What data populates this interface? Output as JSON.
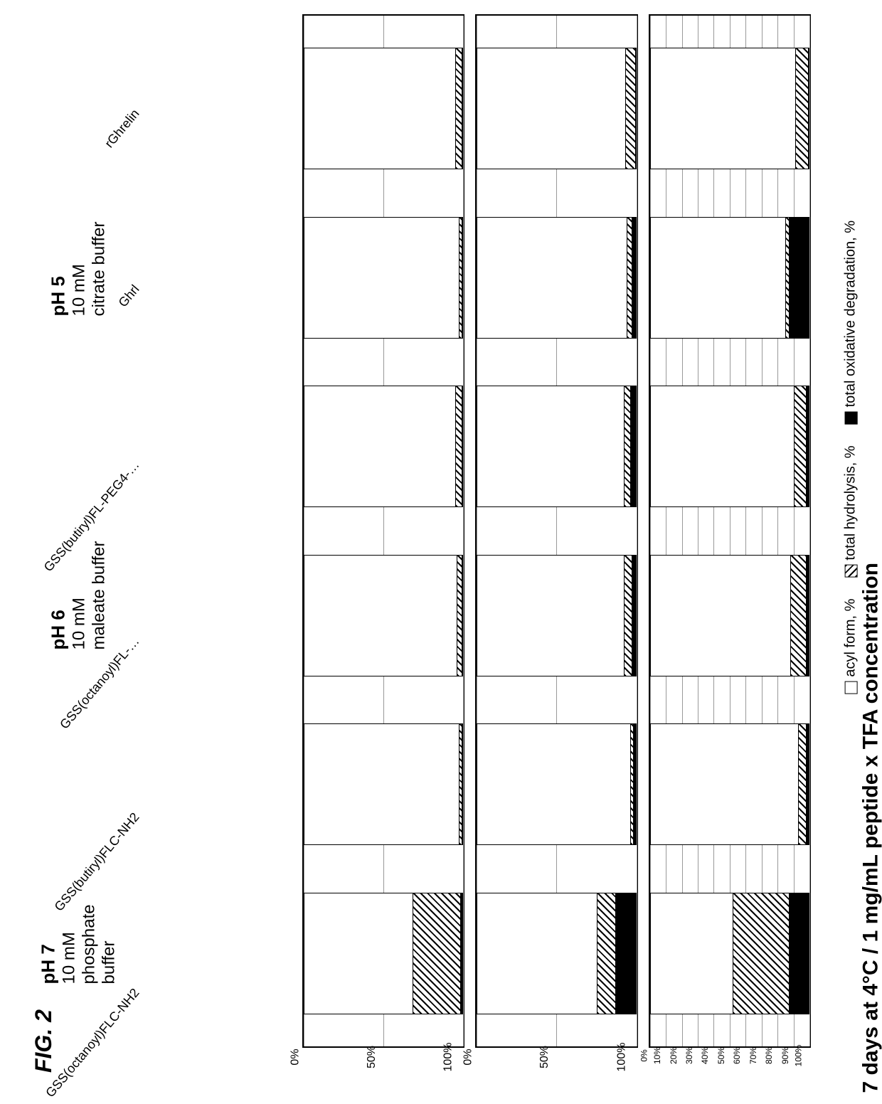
{
  "figure_label": "FIG. 2",
  "title": "7 days at 4°C / 1 mg/mL peptide x TFA concentration",
  "legend": {
    "acyl": "acyl form, %",
    "hydrolysis": "total hydrolysis, %",
    "oxidative": "total oxidative degradation, %"
  },
  "categories": [
    "rGhrelin",
    "Ghrl",
    "GSS(butiryl)FL-PEG4-…",
    "GSS(octanoyl)FL-…",
    "GSS(butiryl)FLC-NH2",
    "GSS(octanoyl)FLC-NH2"
  ],
  "panels": [
    {
      "id": "ph5",
      "ph_label": "pH 5",
      "buffer_label": "10 mM\ncitrate buffer",
      "y_ticks": [
        "0%",
        "50%",
        "100%"
      ],
      "show_x_labels": false,
      "gridlines": [
        0,
        50,
        100
      ],
      "series": [
        {
          "acyl": 96,
          "hydrolysis": 4,
          "oxidative": 0
        },
        {
          "acyl": 97,
          "hydrolysis": 2,
          "oxidative": 1
        },
        {
          "acyl": 95,
          "hydrolysis": 4,
          "oxidative": 1
        },
        {
          "acyl": 96,
          "hydrolysis": 3,
          "oxidative": 1
        },
        {
          "acyl": 97,
          "hydrolysis": 2,
          "oxidative": 1
        },
        {
          "acyl": 68,
          "hydrolysis": 30,
          "oxidative": 2
        }
      ]
    },
    {
      "id": "ph6",
      "ph_label": "pH 6",
      "buffer_label": "10 mM\nmaleate buffer",
      "y_ticks": [
        "0%",
        "50%",
        "100%"
      ],
      "show_x_labels": false,
      "gridlines": [
        0,
        50,
        100
      ],
      "series": [
        {
          "acyl": 94,
          "hydrolysis": 6,
          "oxidative": 0
        },
        {
          "acyl": 94,
          "hydrolysis": 3,
          "oxidative": 3
        },
        {
          "acyl": 92,
          "hydrolysis": 4,
          "oxidative": 4
        },
        {
          "acyl": 92,
          "hydrolysis": 5,
          "oxidative": 3
        },
        {
          "acyl": 96,
          "hydrolysis": 2,
          "oxidative": 2
        },
        {
          "acyl": 75,
          "hydrolysis": 12,
          "oxidative": 13
        }
      ]
    },
    {
      "id": "ph7",
      "ph_label": "pH 7",
      "buffer_label": "10 mM\nphosphate\nbuffer",
      "y_ticks": [
        "0%",
        "10%",
        "20%",
        "30%",
        "40%",
        "50%",
        "60%",
        "70%",
        "80%",
        "90%",
        "100%"
      ],
      "show_x_labels": true,
      "gridlines": [
        0,
        10,
        20,
        30,
        40,
        50,
        60,
        70,
        80,
        90,
        100
      ],
      "series": [
        {
          "acyl": 92,
          "hydrolysis": 8,
          "oxidative": 0
        },
        {
          "acyl": 85,
          "hydrolysis": 2,
          "oxidative": 13
        },
        {
          "acyl": 90,
          "hydrolysis": 8,
          "oxidative": 2
        },
        {
          "acyl": 88,
          "hydrolysis": 10,
          "oxidative": 2
        },
        {
          "acyl": 93,
          "hydrolysis": 5,
          "oxidative": 2
        },
        {
          "acyl": 52,
          "hydrolysis": 35,
          "oxidative": 13
        }
      ]
    }
  ],
  "colors": {
    "acyl_fill": "#ffffff",
    "hydrolysis_pattern": "diag",
    "oxidative_fill": "#000000",
    "border": "#000000",
    "grid": "#999999",
    "background": "#ffffff"
  },
  "layout": {
    "title_fontsize": 30,
    "panel_label_fontsize": 26,
    "axis_fontsize": 14,
    "category_fontsize": 18,
    "legend_fontsize": 20,
    "figure_label_fontsize": 32,
    "bar_height_pct": 12
  }
}
